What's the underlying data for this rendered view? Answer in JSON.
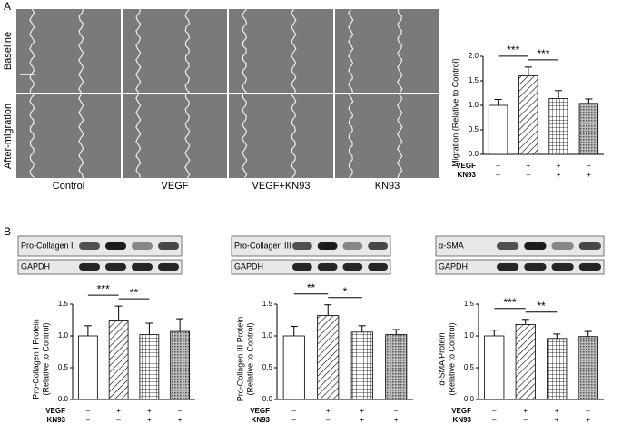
{
  "panel_labels": [
    "A",
    "B"
  ],
  "micrographs": {
    "row_labels": [
      "Baseline",
      "After-migration"
    ],
    "column_labels": [
      "Control",
      "VEGF",
      "VEGF+KN93",
      "KN93"
    ]
  },
  "blots": [
    {
      "labels": [
        "Pro-Collagen I",
        "GAPDH"
      ]
    },
    {
      "labels": [
        "Pro-Collagen III",
        "GAPDH"
      ]
    },
    {
      "labels": [
        "α-SMA",
        "GAPDH"
      ]
    }
  ],
  "chart_data": [
    {
      "type": "bar",
      "y_label": [
        "Migration (Relative to Control)"
      ],
      "values": [
        1.0,
        1.6,
        1.14,
        1.04
      ],
      "errors": [
        0.12,
        0.18,
        0.16,
        0.09
      ],
      "ylim": [
        0,
        2.0
      ],
      "yticks": [
        {
          "value": 0,
          "label": "0.0"
        },
        {
          "value": 0.5,
          "label": "0.5"
        },
        {
          "value": 1,
          "label": "1.0"
        },
        {
          "value": 1.5,
          "label": "1.5"
        },
        {
          "value": 2,
          "label": "2.0"
        }
      ],
      "conditions": [
        {
          "name": "VEGF",
          "signs": [
            "–",
            "+",
            "+",
            "–"
          ]
        },
        {
          "name": "KN93",
          "signs": [
            "–",
            "–",
            "+",
            "+"
          ]
        }
      ],
      "significance": [
        {
          "label": "***",
          "between": [
            0,
            1
          ]
        },
        {
          "label": "***",
          "between": [
            1,
            2
          ]
        }
      ]
    },
    {
      "type": "bar",
      "y_label": [
        "Pro-Collagen I Protein",
        "(Relative to Control)"
      ],
      "values": [
        1.0,
        1.25,
        1.02,
        1.07
      ],
      "errors": [
        0.16,
        0.22,
        0.18,
        0.2
      ],
      "ylim": [
        0,
        1.5
      ],
      "yticks": [
        {
          "value": 0,
          "label": "0.0"
        },
        {
          "value": 0.5,
          "label": "0.5"
        },
        {
          "value": 1,
          "label": "1.0"
        },
        {
          "value": 1.5,
          "label": "1.5"
        }
      ],
      "conditions": [
        {
          "name": "VEGF",
          "signs": [
            "–",
            "+",
            "+",
            "–"
          ]
        },
        {
          "name": "KN93",
          "signs": [
            "–",
            "–",
            "+",
            "+"
          ]
        }
      ],
      "significance": [
        {
          "label": "***",
          "between": [
            0,
            1
          ]
        },
        {
          "label": "**",
          "between": [
            1,
            2
          ]
        }
      ]
    },
    {
      "type": "bar",
      "y_label": [
        "Pro-Collagen III Protein",
        "(Relative to Control)"
      ],
      "values": [
        1.0,
        1.32,
        1.06,
        1.02
      ],
      "errors": [
        0.15,
        0.17,
        0.1,
        0.08
      ],
      "ylim": [
        0,
        1.5
      ],
      "yticks": [
        {
          "value": 0,
          "label": "0.0"
        },
        {
          "value": 0.5,
          "label": "0.5"
        },
        {
          "value": 1,
          "label": "1.0"
        },
        {
          "value": 1.5,
          "label": "1.5"
        }
      ],
      "conditions": [
        {
          "name": "VEGF",
          "signs": [
            "–",
            "+",
            "+",
            "–"
          ]
        },
        {
          "name": "KN93",
          "signs": [
            "–",
            "–",
            "+",
            "+"
          ]
        }
      ],
      "significance": [
        {
          "label": "**",
          "between": [
            0,
            1
          ]
        },
        {
          "label": "*",
          "between": [
            1,
            2
          ]
        }
      ]
    },
    {
      "type": "bar",
      "y_label": [
        "α-SMA Protein",
        "(Relative to Control)"
      ],
      "values": [
        1.0,
        1.18,
        0.96,
        0.99
      ],
      "errors": [
        0.09,
        0.08,
        0.07,
        0.08
      ],
      "ylim": [
        0,
        1.5
      ],
      "yticks": [
        {
          "value": 0,
          "label": "0.0"
        },
        {
          "value": 0.5,
          "label": "0.5"
        },
        {
          "value": 1,
          "label": "1.0"
        },
        {
          "value": 1.5,
          "label": "1.5"
        }
      ],
      "conditions": [
        {
          "name": "VEGF",
          "signs": [
            "–",
            "+",
            "+",
            "–"
          ]
        },
        {
          "name": "KN93",
          "signs": [
            "–",
            "–",
            "+",
            "+"
          ]
        }
      ],
      "significance": [
        {
          "label": "***",
          "between": [
            0,
            1
          ]
        },
        {
          "label": "**",
          "between": [
            1,
            2
          ]
        }
      ]
    }
  ]
}
